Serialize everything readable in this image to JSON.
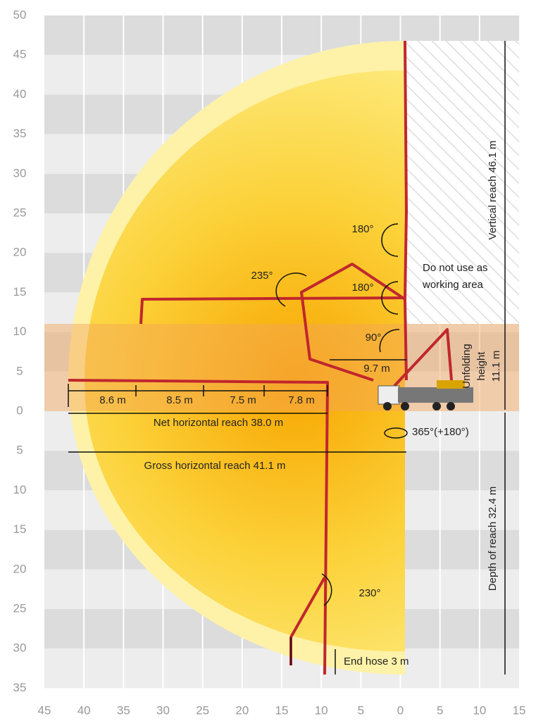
{
  "y_axis_labels": [
    "50",
    "45",
    "40",
    "35",
    "30",
    "25",
    "20",
    "15",
    "10",
    "5",
    "0",
    "5",
    "10",
    "15",
    "20",
    "25",
    "30",
    "35"
  ],
  "x_axis_labels": [
    "45",
    "40",
    "35",
    "30",
    "25",
    "20",
    "15",
    "10",
    "5",
    "0",
    "5",
    "10",
    "15"
  ],
  "segments": [
    "8.6 m",
    "8.5 m",
    "7.5 m",
    "7.8 m"
  ],
  "net_reach": "Net horizontal reach 38.0 m",
  "gross_reach": "Gross horizontal reach 41.1 m",
  "reach_9_7": "9.7 m",
  "vertical_reach": "Vertical reach 46.1 m",
  "depth_reach": "Depth of reach 32.4 m",
  "unfolding": [
    "Unfolding",
    "height",
    "11.1 m"
  ],
  "no_work_area": [
    "Do not use as",
    "working area"
  ],
  "angles": [
    "180°",
    "180°",
    "235°",
    "90°",
    "230°"
  ],
  "slew": "365°(+180°)",
  "end_hose": "End hose 3 m"
}
